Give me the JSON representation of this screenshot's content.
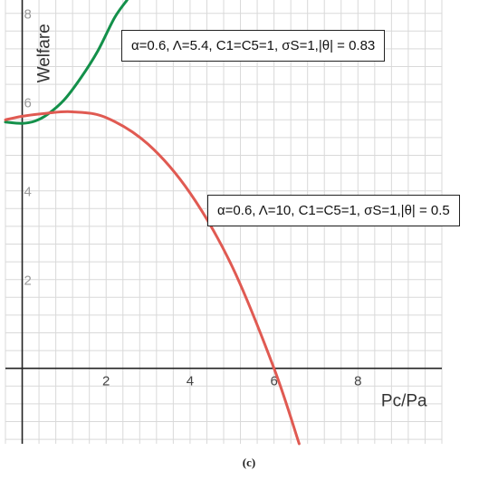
{
  "chart_data": {
    "type": "line",
    "title": "",
    "xlabel": "Pc/Pa",
    "ylabel": "Welfare",
    "xlim": [
      -0.4,
      10
    ],
    "ylim": [
      -1.7,
      8.3
    ],
    "x_ticks": [
      2,
      4,
      6,
      8
    ],
    "y_ticks": [
      2,
      4,
      6,
      8
    ],
    "x_tick_labels": [
      "2",
      "4",
      "6",
      "8"
    ],
    "y_tick_labels": [
      "2",
      "4",
      "6",
      "8"
    ],
    "grid": true,
    "grid_minor_step": 0.4,
    "series": [
      {
        "color": "#13904a",
        "x": [
          -0.4,
          0,
          0.3,
          0.6,
          1.0,
          1.4,
          1.8,
          2.2,
          2.5
        ],
        "y": [
          5.55,
          5.52,
          5.57,
          5.72,
          6.05,
          6.55,
          7.15,
          7.9,
          8.3
        ]
      },
      {
        "color": "#e05a52",
        "x": [
          -0.4,
          0,
          0.6,
          1.2,
          2.0,
          3.0,
          4.0,
          5.0,
          6.0,
          6.6
        ],
        "y": [
          5.6,
          5.68,
          5.75,
          5.78,
          5.65,
          5.05,
          3.95,
          2.3,
          0.0,
          -1.7
        ]
      }
    ],
    "annotations": [
      "α=0.6, Λ=5.4, C1=C5=1, σS=1,|θ| = 0.83",
      "α=0.6, Λ=10, C1=C5=1, σS=1,|θ| = 0.5"
    ]
  },
  "caption": "(c)",
  "colors": {
    "grid": "#d9d9d9",
    "axis": "#222222",
    "tick_text": "#444444"
  }
}
